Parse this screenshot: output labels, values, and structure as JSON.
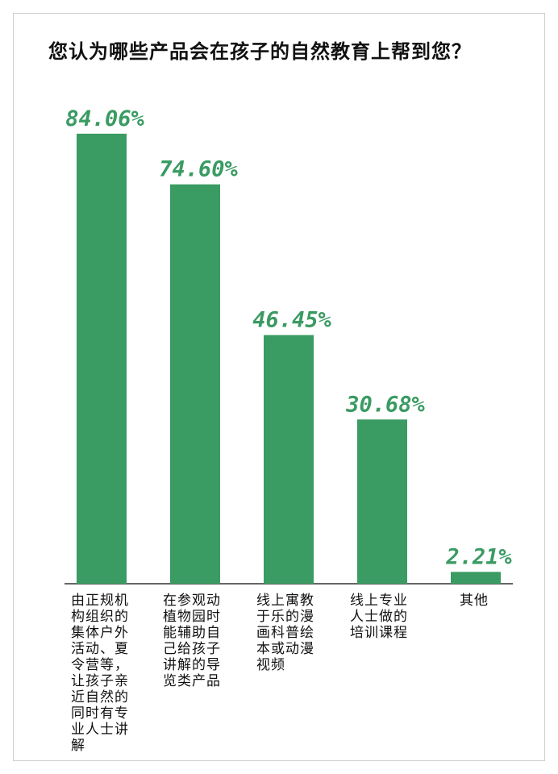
{
  "chart_data": {
    "type": "bar",
    "title": "您认为哪些产品会在孩子的自然教育上帮到您？",
    "categories": [
      "由正规机构组织的集体户外活动、夏令营等，让孩子亲近自然的同时有专业人士讲解",
      "在参观动植物园时能辅助自己给孩子讲解的导览类产品",
      "线上寓教于乐的漫画科普绘本或动漫视频",
      "线上专业人士做的培训课程",
      "其他"
    ],
    "category_lines": [
      [
        "由正规机",
        "构组织的",
        "集体户外",
        "活动、夏",
        "令营等，",
        "让孩子亲",
        "近自然的",
        "同时有专",
        "业人士讲",
        "解"
      ],
      [
        "在参观动",
        "植物园时",
        "能辅助自",
        "己给孩子",
        "讲解的导",
        "览类产品"
      ],
      [
        "线上寓教",
        "于乐的漫",
        "画科普绘",
        "本或动漫",
        "视频"
      ],
      [
        "线上专业",
        "人士做的",
        "培训课程"
      ],
      [
        "其他"
      ]
    ],
    "values": [
      84.06,
      74.6,
      46.45,
      30.68,
      2.21
    ],
    "value_labels": [
      "84.06%",
      "74.60%",
      "46.45%",
      "30.68%",
      "2.21%"
    ],
    "ylim": [
      0,
      100
    ],
    "grid": false,
    "colors": {
      "bar": "#3a9b63",
      "label": "#3a9b63",
      "axis": "#333333"
    }
  }
}
